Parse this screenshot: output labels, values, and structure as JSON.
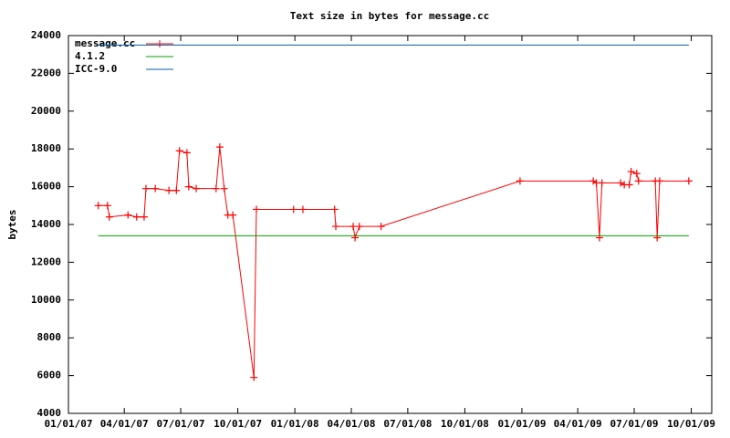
{
  "chart_data": {
    "type": "line",
    "title": "Text size in bytes for message.cc",
    "y_label": "bytes",
    "xlim": [
      "2007-01-01",
      "2009-11-03"
    ],
    "xticks": [
      {
        "value": "2007-01-01",
        "label": "01/01/07"
      },
      {
        "value": "2007-04-01",
        "label": "04/01/07"
      },
      {
        "value": "2007-07-01",
        "label": "07/01/07"
      },
      {
        "value": "2007-10-01",
        "label": "10/01/07"
      },
      {
        "value": "2008-01-01",
        "label": "01/01/08"
      },
      {
        "value": "2008-04-01",
        "label": "04/01/08"
      },
      {
        "value": "2008-07-01",
        "label": "07/01/08"
      },
      {
        "value": "2008-10-01",
        "label": "10/01/08"
      },
      {
        "value": "2009-01-01",
        "label": "01/01/09"
      },
      {
        "value": "2009-04-01",
        "label": "04/01/09"
      },
      {
        "value": "2009-07-01",
        "label": "07/01/09"
      },
      {
        "value": "2009-10-01",
        "label": "10/01/09"
      }
    ],
    "ylim": [
      4000,
      24000
    ],
    "yticks": [
      4000,
      6000,
      8000,
      10000,
      12000,
      14000,
      16000,
      18000,
      20000,
      22000,
      24000
    ],
    "legend": "top-left",
    "series": [
      {
        "name": "message.cc",
        "color": "#ff0000",
        "markers": true,
        "x": [
          "2007-02-18",
          "2007-03-05",
          "2007-03-08",
          "2007-04-07",
          "2007-04-21",
          "2007-05-03",
          "2007-05-06",
          "2007-05-21",
          "2007-06-12",
          "2007-06-24",
          "2007-06-29",
          "2007-07-11",
          "2007-07-14",
          "2007-07-26",
          "2007-08-27",
          "2007-09-02",
          "2007-09-09",
          "2007-09-15",
          "2007-09-23",
          "2007-10-27",
          "2007-10-31",
          "2007-12-30",
          "2008-01-14",
          "2008-03-05",
          "2008-03-07",
          "2008-04-04",
          "2008-04-07",
          "2008-04-14",
          "2008-05-19",
          "2008-12-29",
          "2009-04-26",
          "2009-05-01",
          "2009-05-06",
          "2009-05-10",
          "2009-06-09",
          "2009-06-15",
          "2009-06-23",
          "2009-06-26",
          "2009-07-05",
          "2009-07-08",
          "2009-08-04",
          "2009-08-07",
          "2009-08-11",
          "2009-09-27"
        ],
        "values": [
          15000,
          15000,
          14400,
          14500,
          14400,
          14400,
          15900,
          15900,
          15800,
          15800,
          17900,
          17800,
          16000,
          15900,
          15900,
          18100,
          15900,
          14500,
          14500,
          5900,
          14800,
          14800,
          14800,
          14800,
          13900,
          13900,
          13300,
          13900,
          13900,
          16300,
          16300,
          16200,
          13300,
          16200,
          16200,
          16100,
          16100,
          16800,
          16700,
          16300,
          16300,
          13300,
          16300,
          16300
        ]
      },
      {
        "name": "4.1.2",
        "color": "#00a000",
        "markers": false,
        "x": [
          "2007-02-18",
          "2009-09-27"
        ],
        "values": [
          13400,
          13400
        ]
      },
      {
        "name": "ICC-9.0",
        "color": "#0060ad",
        "markers": false,
        "x": [
          "2007-02-18",
          "2009-09-27"
        ],
        "values": [
          23500,
          23500
        ]
      }
    ]
  }
}
